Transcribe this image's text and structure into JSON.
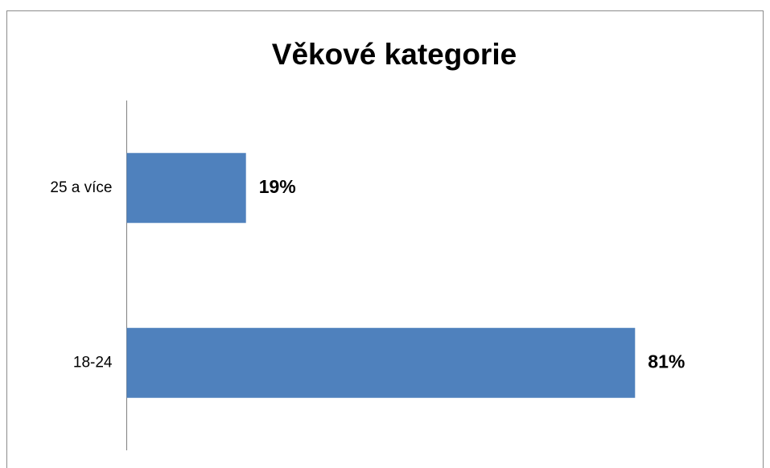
{
  "chart_data": {
    "type": "hbar",
    "title": "Věkové kategorie",
    "categories": [
      "25 a více",
      "18-24"
    ],
    "values": [
      19,
      81
    ],
    "value_labels": [
      "19%",
      "81%"
    ],
    "color": "#4f81bd",
    "xlim": [
      0,
      100
    ]
  }
}
